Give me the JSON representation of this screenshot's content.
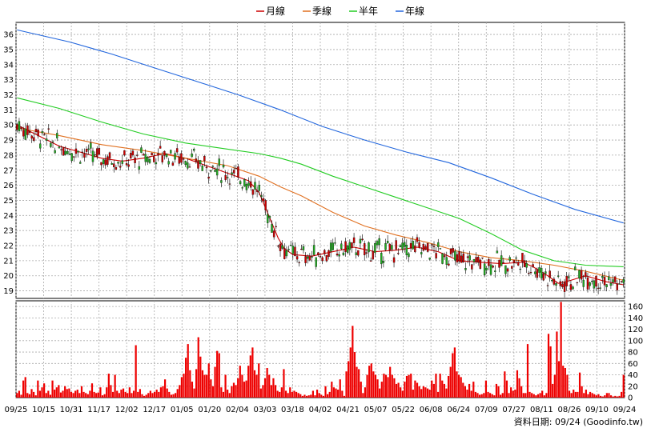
{
  "chart_data": [
    {
      "type": "candlestick",
      "legend": [
        {
          "name": "月線",
          "color": "#cc0000"
        },
        {
          "name": "季線",
          "color": "#e07020"
        },
        {
          "name": "半年",
          "color": "#22cc22"
        },
        {
          "name": "年線",
          "color": "#2266dd"
        }
      ],
      "ylim": [
        18.5,
        36.8
      ],
      "yticks": [
        19,
        20,
        21,
        22,
        23,
        24,
        25,
        26,
        27,
        28,
        29,
        30,
        31,
        32,
        33,
        34,
        35,
        36
      ],
      "grid": true,
      "candle_up_color": "#22aa22",
      "candle_down_color": "#cc0000",
      "ma": {
        "月線": [
          [
            0,
            30.0
          ],
          [
            10,
            29.3
          ],
          [
            20,
            28.6
          ],
          [
            30,
            28.2
          ],
          [
            40,
            27.8
          ],
          [
            50,
            27.6
          ],
          [
            60,
            27.8
          ],
          [
            70,
            28.1
          ],
          [
            80,
            27.8
          ],
          [
            90,
            27.3
          ],
          [
            100,
            26.8
          ],
          [
            110,
            26.3
          ],
          [
            115,
            25.5
          ],
          [
            118,
            24.5
          ],
          [
            121,
            23.5
          ],
          [
            124,
            22.5
          ],
          [
            127,
            21.8
          ],
          [
            131,
            21.4
          ],
          [
            140,
            21.3
          ],
          [
            150,
            21.6
          ],
          [
            160,
            21.9
          ],
          [
            170,
            21.6
          ],
          [
            180,
            21.7
          ],
          [
            190,
            21.9
          ],
          [
            200,
            21.6
          ],
          [
            210,
            21.0
          ],
          [
            220,
            20.9
          ],
          [
            230,
            20.8
          ],
          [
            240,
            20.9
          ],
          [
            245,
            20.6
          ],
          [
            252,
            20.0
          ],
          [
            257,
            19.5
          ],
          [
            263,
            19.7
          ],
          [
            270,
            20.0
          ],
          [
            275,
            19.8
          ],
          [
            280,
            19.6
          ],
          [
            288,
            19.4
          ]
        ],
        "季線": [
          [
            0,
            29.8
          ],
          [
            20,
            29.3
          ],
          [
            40,
            28.7
          ],
          [
            60,
            28.3
          ],
          [
            80,
            27.8
          ],
          [
            100,
            27.3
          ],
          [
            115,
            26.6
          ],
          [
            125,
            25.9
          ],
          [
            135,
            25.3
          ],
          [
            150,
            24.2
          ],
          [
            165,
            23.3
          ],
          [
            180,
            22.7
          ],
          [
            195,
            22.2
          ],
          [
            210,
            21.6
          ],
          [
            225,
            21.2
          ],
          [
            240,
            21.0
          ],
          [
            255,
            20.7
          ],
          [
            270,
            20.3
          ],
          [
            288,
            19.7
          ]
        ],
        "半年": [
          [
            0,
            31.8
          ],
          [
            20,
            31.1
          ],
          [
            40,
            30.2
          ],
          [
            60,
            29.4
          ],
          [
            80,
            28.8
          ],
          [
            100,
            28.4
          ],
          [
            115,
            28.1
          ],
          [
            125,
            27.8
          ],
          [
            135,
            27.4
          ],
          [
            150,
            26.6
          ],
          [
            165,
            25.9
          ],
          [
            180,
            25.2
          ],
          [
            195,
            24.5
          ],
          [
            210,
            23.8
          ],
          [
            225,
            22.8
          ],
          [
            240,
            21.7
          ],
          [
            255,
            21.0
          ],
          [
            270,
            20.7
          ],
          [
            288,
            20.6
          ]
        ],
        "年線": [
          [
            0,
            36.3
          ],
          [
            25,
            35.5
          ],
          [
            45,
            34.7
          ],
          [
            65,
            33.8
          ],
          [
            85,
            32.9
          ],
          [
            105,
            32.0
          ],
          [
            125,
            31.0
          ],
          [
            145,
            29.9
          ],
          [
            165,
            29.0
          ],
          [
            185,
            28.2
          ],
          [
            205,
            27.5
          ],
          [
            225,
            26.5
          ],
          [
            245,
            25.4
          ],
          [
            265,
            24.4
          ],
          [
            288,
            23.5
          ]
        ]
      },
      "price_series": "generated-ohlc-approx",
      "volume": {
        "type": "bar",
        "ylim": [
          0,
          170
        ],
        "yticks": [
          0,
          20,
          40,
          60,
          80,
          100,
          120,
          140,
          160
        ],
        "color": "#ee0000",
        "values": [
          8,
          12,
          5,
          30,
          36,
          8,
          6,
          15,
          10,
          4,
          30,
          12,
          18,
          25,
          8,
          12,
          5,
          30,
          14,
          18,
          22,
          9,
          12,
          20,
          15,
          16,
          10,
          8,
          12,
          14,
          8,
          20,
          10,
          8,
          6,
          12,
          25,
          10,
          8,
          9,
          18,
          4,
          6,
          18,
          42,
          22,
          10,
          40,
          12,
          8,
          14,
          16,
          10,
          8,
          18,
          8,
          12,
          92,
          10,
          15,
          6,
          3,
          5,
          8,
          12,
          8,
          10,
          14,
          10,
          18,
          20,
          32,
          16,
          10,
          5,
          6,
          8,
          15,
          22,
          36,
          42,
          70,
          94,
          48,
          28,
          16,
          50,
          106,
          72,
          48,
          40,
          40,
          60,
          32,
          20,
          54,
          82,
          78,
          18,
          10,
          40,
          14,
          8,
          20,
          26,
          22,
          34,
          56,
          40,
          28,
          30,
          56,
          74,
          88,
          48,
          40,
          60,
          16,
          22,
          34,
          52,
          40,
          22,
          34,
          22,
          12,
          10,
          18,
          50,
          12,
          8,
          18,
          10,
          12,
          10,
          8,
          6,
          3,
          5,
          3,
          4,
          5,
          12,
          4,
          14,
          8,
          5,
          3,
          20,
          6,
          10,
          28,
          18,
          16,
          14,
          32,
          12,
          3,
          46,
          64,
          88,
          126,
          80,
          54,
          50,
          28,
          8,
          18,
          40,
          56,
          60,
          46,
          40,
          32,
          16,
          28,
          42,
          40,
          36,
          54,
          40,
          34,
          24,
          26,
          18,
          12,
          28,
          38,
          40,
          42,
          14,
          30,
          26,
          20,
          15,
          20,
          18,
          16,
          14,
          30,
          24,
          42,
          10,
          42,
          30,
          24,
          16,
          38,
          54,
          78,
          88,
          46,
          40,
          36,
          26,
          20,
          14,
          24,
          12,
          28,
          10,
          8,
          5,
          6,
          8,
          30,
          10,
          8,
          6,
          4,
          24,
          20,
          5,
          8,
          46,
          30,
          8,
          18,
          12,
          14,
          48,
          34,
          20,
          8,
          8,
          94,
          10,
          8,
          6,
          4,
          6,
          8,
          12,
          4,
          8,
          112,
          90,
          24,
          40,
          116,
          64,
          168,
          56,
          52,
          40,
          12,
          8,
          14,
          10,
          10,
          44,
          20,
          8,
          14,
          6,
          10,
          8,
          6,
          4,
          6,
          3,
          2,
          4,
          8,
          8,
          4,
          2,
          3,
          2,
          3,
          10,
          40
        ]
      },
      "x_tick_labels": [
        "09/25",
        "10/15",
        "10/31",
        "11/17",
        "12/02",
        "12/17",
        "01/05",
        "01/20",
        "02/04",
        "03/03",
        "03/18",
        "04/02",
        "04/21",
        "05/07",
        "05/22",
        "06/08",
        "06/24",
        "07/09",
        "07/27",
        "08/11",
        "08/26",
        "09/10",
        "09/24"
      ],
      "x_tick_index": [
        0,
        13,
        24,
        35,
        46,
        57,
        68,
        79,
        90,
        101,
        112,
        123,
        134,
        145,
        156,
        167,
        178,
        189,
        200,
        211,
        222,
        233,
        244
      ]
    }
  ],
  "source_label": "資料日期: 09/24  (Goodinfo.tw)"
}
